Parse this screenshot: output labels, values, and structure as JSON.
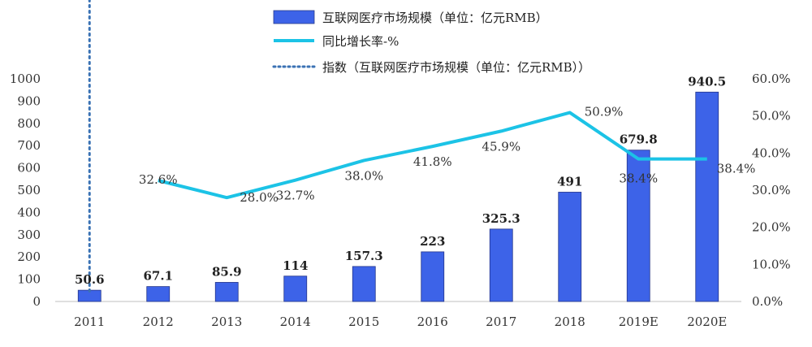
{
  "chart_data": {
    "type": "bar",
    "categories": [
      "2011",
      "2012",
      "2013",
      "2014",
      "2015",
      "2016",
      "2017",
      "2018",
      "2019E",
      "2020E"
    ],
    "series": [
      {
        "name": "互联网医疗市场规模（单位：亿元RMB）",
        "kind": "bar",
        "axis": "left",
        "color": "#3d63e8",
        "values": [
          50.6,
          67.1,
          85.9,
          114,
          157.3,
          223,
          325.3,
          491,
          679.8,
          940.5
        ],
        "labels": [
          "50.6",
          "67.1",
          "85.9",
          "114",
          "157.3",
          "223",
          "325.3",
          "491",
          "679.8",
          "940.5"
        ]
      },
      {
        "name": "同比增长率-%",
        "kind": "line",
        "axis": "right",
        "color": "#1cc3e6",
        "values": [
          null,
          32.6,
          28.0,
          32.7,
          38.0,
          41.8,
          45.9,
          50.9,
          38.4,
          38.4
        ],
        "labels": [
          "",
          "32.6%",
          "28.0%",
          "32.7%",
          "38.0%",
          "41.8%",
          "45.9%",
          "50.9%",
          "38.4%",
          "38.4%"
        ]
      },
      {
        "name": "指数（互联网医疗市场规模（单位：亿元RMB））",
        "kind": "trendline",
        "fit": "exponential",
        "of_series": 0,
        "axis": "left",
        "color": "#3a72b4"
      }
    ],
    "y_left": {
      "range": [
        0,
        1000
      ],
      "ticks": [
        "0",
        "100",
        "200",
        "300",
        "400",
        "500",
        "600",
        "700",
        "800",
        "900",
        "1000"
      ]
    },
    "y_right": {
      "range": [
        0,
        60
      ],
      "ticks": [
        "0.0%",
        "10.0%",
        "20.0%",
        "30.0%",
        "40.0%",
        "50.0%",
        "60.0%"
      ]
    },
    "grid": false,
    "legend_position": "top-center"
  }
}
